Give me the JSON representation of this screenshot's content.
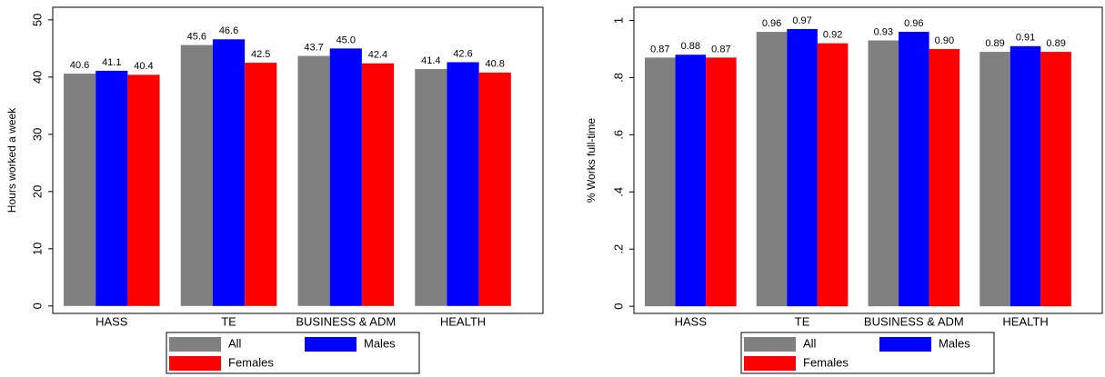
{
  "chart_data": [
    {
      "type": "bar",
      "y_label": "Hours worked a week",
      "categories": [
        "HASS",
        "TE",
        "BUSINESS & ADM",
        "HEALTH"
      ],
      "series": [
        {
          "name": "All",
          "color": "#808080",
          "values": [
            40.6,
            45.6,
            43.7,
            41.4
          ],
          "value_labels": [
            "40.6",
            "45.6",
            "43.7",
            "41.4"
          ]
        },
        {
          "name": "Males",
          "color": "#0000ff",
          "values": [
            41.1,
            46.6,
            45.0,
            42.6
          ],
          "value_labels": [
            "41.1",
            "46.6",
            "45.0",
            "42.6"
          ]
        },
        {
          "name": "Females",
          "color": "#ff0000",
          "values": [
            40.4,
            42.5,
            42.4,
            40.8
          ],
          "value_labels": [
            "40.4",
            "42.5",
            "42.4",
            "40.8"
          ]
        }
      ],
      "ylim": [
        -1.3,
        52.2
      ],
      "yticks": [
        0,
        10,
        20,
        30,
        40,
        50
      ],
      "legend_position": "bottom"
    },
    {
      "type": "bar",
      "y_label": "% Works full-time",
      "categories": [
        "HASS",
        "TE",
        "BUSINESS & ADM",
        "HEALTH"
      ],
      "series": [
        {
          "name": "All",
          "color": "#808080",
          "values": [
            0.87,
            0.96,
            0.93,
            0.89
          ],
          "value_labels": [
            "0.87",
            "0.96",
            "0.93",
            "0.89"
          ]
        },
        {
          "name": "Males",
          "color": "#0000ff",
          "values": [
            0.88,
            0.97,
            0.96,
            0.91
          ],
          "value_labels": [
            "0.88",
            "0.97",
            "0.96",
            "0.91"
          ]
        },
        {
          "name": "Females",
          "color": "#ff0000",
          "values": [
            0.87,
            0.92,
            0.9,
            0.89
          ],
          "value_labels": [
            "0.87",
            "0.92",
            "0.90",
            "0.89"
          ]
        }
      ],
      "ylim": [
        -0.025,
        1.046
      ],
      "yticks": [
        0,
        {
          "value": 0.2,
          "label": ".2"
        },
        {
          "value": 0.4,
          "label": ".4"
        },
        {
          "value": 0.6,
          "label": ".6"
        },
        {
          "value": 0.8,
          "label": ".8"
        },
        1
      ],
      "legend_position": "bottom"
    }
  ]
}
